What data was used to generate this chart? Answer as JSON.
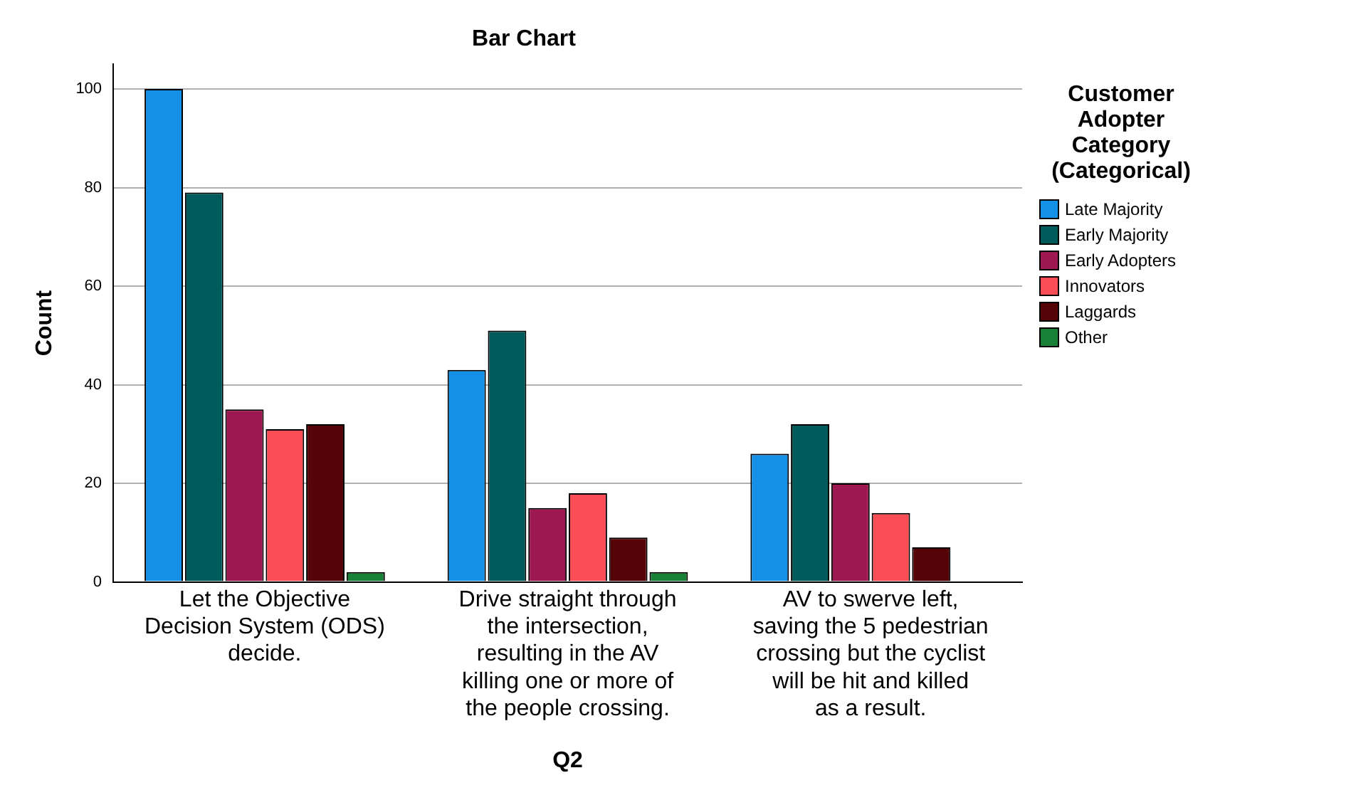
{
  "chart_data": {
    "type": "bar",
    "title": "Bar Chart",
    "xlabel": "Q2",
    "ylabel": "Count",
    "legend_title": "Customer Adopter Category (Categorical)",
    "categories": [
      "Let the Objective Decision System (ODS) decide.",
      "Drive straight through the intersection, resulting in the AV killing one or more of the people crossing.",
      "AV to swerve left, saving the 5 pedestrian crossing but the cyclist will be hit and killed as a result."
    ],
    "series": [
      {
        "name": "Late Majority",
        "color": "#1490e6",
        "values": [
          100,
          43,
          26
        ]
      },
      {
        "name": "Early Majority",
        "color": "#005c5c",
        "values": [
          79,
          51,
          32
        ]
      },
      {
        "name": "Early Adopters",
        "color": "#9e1852",
        "values": [
          35,
          15,
          20
        ]
      },
      {
        "name": "Innovators",
        "color": "#fa4d56",
        "values": [
          31,
          18,
          14
        ]
      },
      {
        "name": "Laggards",
        "color": "#570408",
        "values": [
          32,
          9,
          7
        ]
      },
      {
        "name": "Other",
        "color": "#198038",
        "values": [
          2,
          2,
          null
        ]
      }
    ],
    "ylim": [
      0,
      105
    ],
    "yticks": [
      0,
      20,
      40,
      60,
      80,
      100
    ],
    "grid": "y",
    "legend": "right"
  }
}
